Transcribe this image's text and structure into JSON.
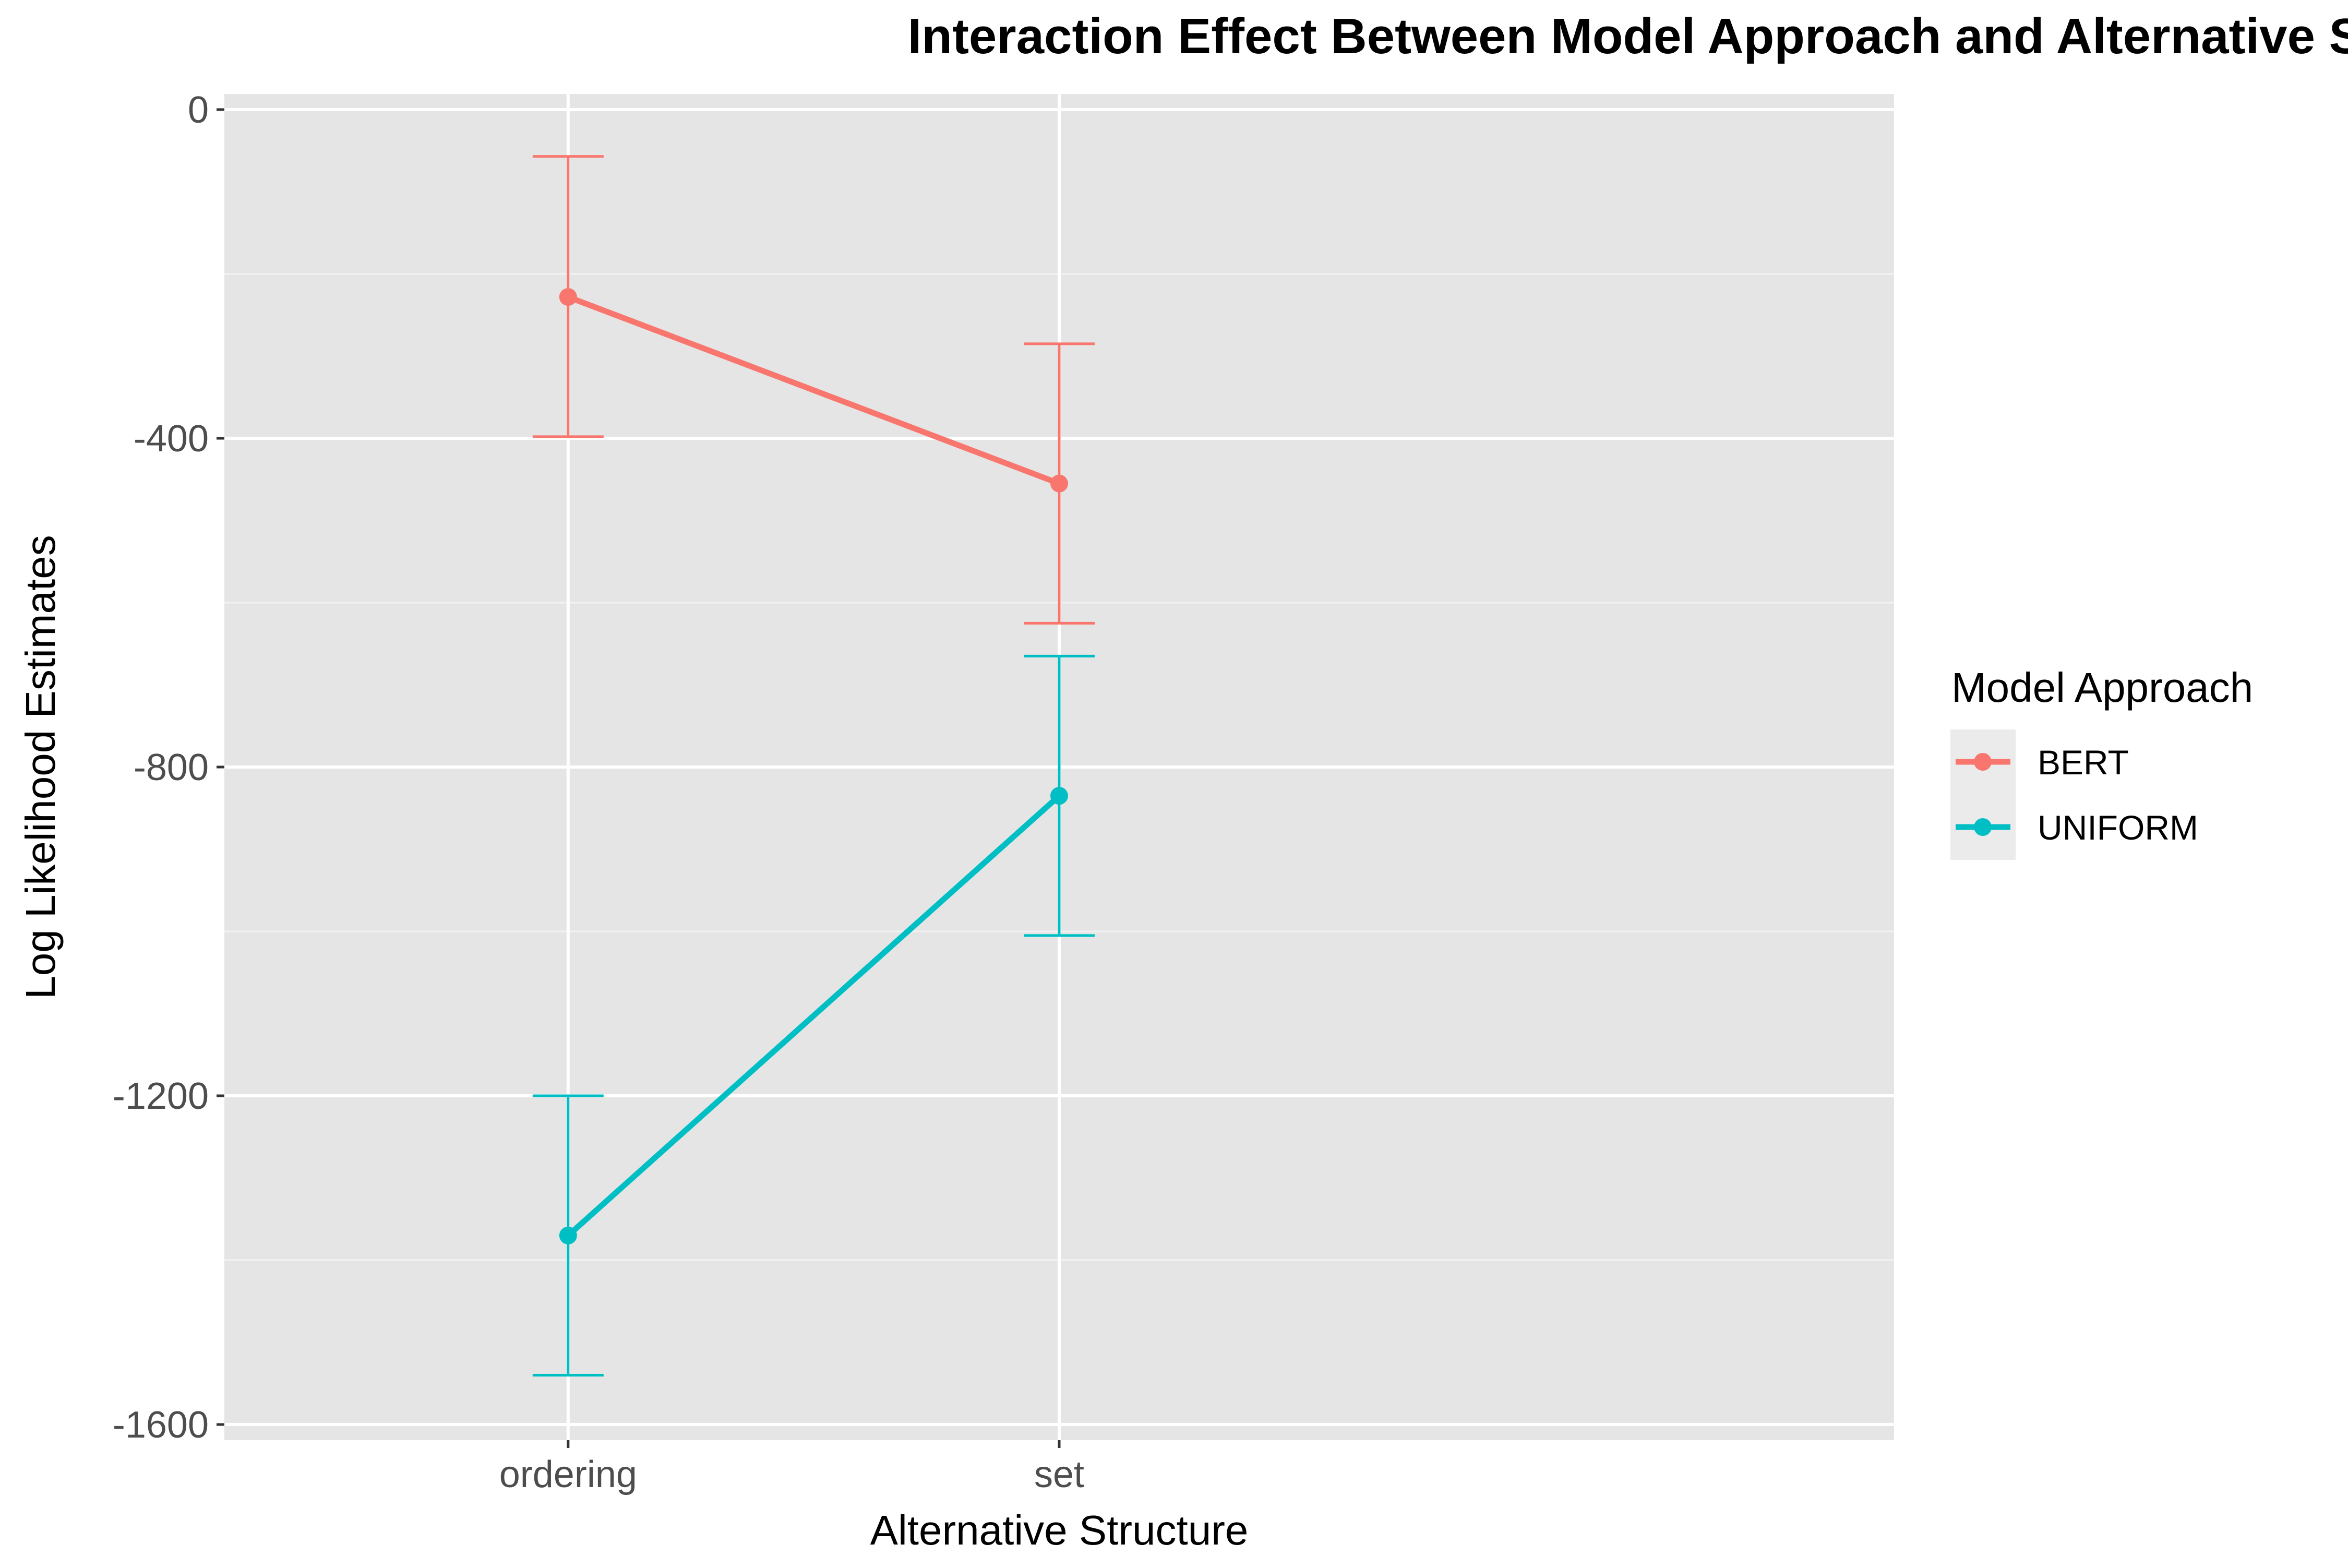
{
  "chart_data": {
    "type": "line",
    "title": "Interaction Effect Between Model Approach and Alternative Structure",
    "xlabel": "Alternative Structure",
    "ylabel": "Log Likelihood Estimates",
    "categories": [
      "ordering",
      "set"
    ],
    "ylim": [
      -1600,
      0
    ],
    "yticks": [
      0,
      -400,
      -800,
      -1200,
      -1600
    ],
    "ytick_labels": [
      "0",
      "-400",
      "-800",
      "-1200",
      "-1600"
    ],
    "grid": true,
    "legend": {
      "title": "Model Approach",
      "position": "right"
    },
    "series": [
      {
        "name": "BERT",
        "color": "#F8766D",
        "values": [
          -228,
          -455
        ],
        "error_low": [
          -398,
          -625
        ],
        "error_high": [
          -57,
          -285
        ]
      },
      {
        "name": "UNIFORM",
        "color": "#00BFC4",
        "values": [
          -1370,
          -835
        ],
        "error_low": [
          -1540,
          -1005
        ],
        "error_high": [
          -1200,
          -665
        ]
      }
    ]
  },
  "colors": {
    "panel_background": "#E5E5E5",
    "grid_major": "#FFFFFF",
    "grid_minor": "#F2F2F2",
    "legend_key_background": "#EBEBEB",
    "tick_text": "#4D4D4D"
  }
}
